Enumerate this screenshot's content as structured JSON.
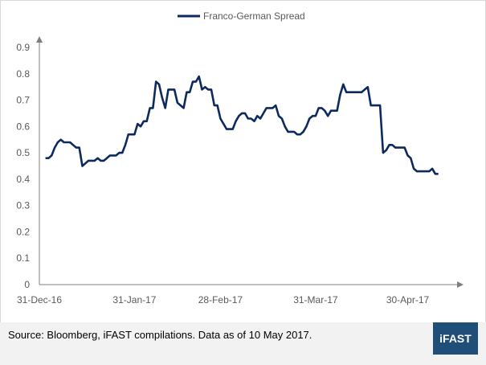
{
  "chart_data": {
    "type": "line",
    "title": "",
    "xlabel": "",
    "ylabel": "",
    "ylim": [
      0,
      0.9
    ],
    "yticks": [
      0,
      0.1,
      0.2,
      0.3,
      0.4,
      0.5,
      0.6,
      0.7,
      0.8,
      0.9
    ],
    "ytick_labels": [
      "0",
      "0.1",
      "0.2",
      "0.3",
      "0.4",
      "0.5",
      "0.6",
      "0.7",
      "0.8",
      "0.9"
    ],
    "xticks": [
      "2016-12-31",
      "2017-01-31",
      "2017-02-28",
      "2017-03-31",
      "2017-04-30"
    ],
    "xtick_labels": [
      "31-Dec-16",
      "31-Jan-17",
      "28-Feb-17",
      "31-Mar-17",
      "30-Apr-17"
    ],
    "xlim": [
      "2016-12-31",
      "2017-05-14"
    ],
    "grid": false,
    "legend_position": "top-center",
    "series": [
      {
        "name": "Franco-German Spread",
        "color": "#0d2a5e",
        "points": [
          [
            "2017-01-02",
            0.48
          ],
          [
            "2017-01-03",
            0.48
          ],
          [
            "2017-01-04",
            0.49
          ],
          [
            "2017-01-05",
            0.52
          ],
          [
            "2017-01-06",
            0.54
          ],
          [
            "2017-01-07",
            0.55
          ],
          [
            "2017-01-08",
            0.54
          ],
          [
            "2017-01-10",
            0.54
          ],
          [
            "2017-01-11",
            0.53
          ],
          [
            "2017-01-12",
            0.52
          ],
          [
            "2017-01-13",
            0.52
          ],
          [
            "2017-01-14",
            0.45
          ],
          [
            "2017-01-15",
            0.46
          ],
          [
            "2017-01-16",
            0.47
          ],
          [
            "2017-01-18",
            0.47
          ],
          [
            "2017-01-19",
            0.48
          ],
          [
            "2017-01-20",
            0.47
          ],
          [
            "2017-01-21",
            0.47
          ],
          [
            "2017-01-22",
            0.48
          ],
          [
            "2017-01-23",
            0.49
          ],
          [
            "2017-01-25",
            0.49
          ],
          [
            "2017-01-26",
            0.5
          ],
          [
            "2017-01-27",
            0.5
          ],
          [
            "2017-01-28",
            0.53
          ],
          [
            "2017-01-29",
            0.57
          ],
          [
            "2017-01-30",
            0.57
          ],
          [
            "2017-01-31",
            0.57
          ],
          [
            "2017-02-01",
            0.61
          ],
          [
            "2017-02-02",
            0.6
          ],
          [
            "2017-02-03",
            0.62
          ],
          [
            "2017-02-04",
            0.62
          ],
          [
            "2017-02-05",
            0.67
          ],
          [
            "2017-02-06",
            0.67
          ],
          [
            "2017-02-07",
            0.77
          ],
          [
            "2017-02-08",
            0.76
          ],
          [
            "2017-02-09",
            0.71
          ],
          [
            "2017-02-10",
            0.67
          ],
          [
            "2017-02-11",
            0.74
          ],
          [
            "2017-02-13",
            0.74
          ],
          [
            "2017-02-14",
            0.69
          ],
          [
            "2017-02-15",
            0.68
          ],
          [
            "2017-02-16",
            0.67
          ],
          [
            "2017-02-17",
            0.73
          ],
          [
            "2017-02-18",
            0.73
          ],
          [
            "2017-02-19",
            0.77
          ],
          [
            "2017-02-20",
            0.77
          ],
          [
            "2017-02-21",
            0.79
          ],
          [
            "2017-02-22",
            0.74
          ],
          [
            "2017-02-23",
            0.75
          ],
          [
            "2017-02-24",
            0.74
          ],
          [
            "2017-02-25",
            0.74
          ],
          [
            "2017-02-26",
            0.68
          ],
          [
            "2017-02-27",
            0.68
          ],
          [
            "2017-02-28",
            0.63
          ],
          [
            "2017-03-01",
            0.61
          ],
          [
            "2017-03-02",
            0.59
          ],
          [
            "2017-03-03",
            0.59
          ],
          [
            "2017-03-04",
            0.59
          ],
          [
            "2017-03-05",
            0.62
          ],
          [
            "2017-03-06",
            0.64
          ],
          [
            "2017-03-07",
            0.65
          ],
          [
            "2017-03-08",
            0.65
          ],
          [
            "2017-03-09",
            0.63
          ],
          [
            "2017-03-10",
            0.63
          ],
          [
            "2017-03-11",
            0.62
          ],
          [
            "2017-03-12",
            0.64
          ],
          [
            "2017-03-13",
            0.63
          ],
          [
            "2017-03-14",
            0.65
          ],
          [
            "2017-03-15",
            0.67
          ],
          [
            "2017-03-16",
            0.67
          ],
          [
            "2017-03-17",
            0.67
          ],
          [
            "2017-03-18",
            0.68
          ],
          [
            "2017-03-19",
            0.64
          ],
          [
            "2017-03-20",
            0.63
          ],
          [
            "2017-03-21",
            0.6
          ],
          [
            "2017-03-22",
            0.58
          ],
          [
            "2017-03-23",
            0.58
          ],
          [
            "2017-03-24",
            0.58
          ],
          [
            "2017-03-25",
            0.57
          ],
          [
            "2017-03-26",
            0.57
          ],
          [
            "2017-03-27",
            0.58
          ],
          [
            "2017-03-28",
            0.6
          ],
          [
            "2017-03-29",
            0.63
          ],
          [
            "2017-03-30",
            0.64
          ],
          [
            "2017-03-31",
            0.64
          ],
          [
            "2017-04-01",
            0.67
          ],
          [
            "2017-04-02",
            0.67
          ],
          [
            "2017-04-03",
            0.66
          ],
          [
            "2017-04-04",
            0.64
          ],
          [
            "2017-04-05",
            0.66
          ],
          [
            "2017-04-06",
            0.66
          ],
          [
            "2017-04-07",
            0.66
          ],
          [
            "2017-04-08",
            0.72
          ],
          [
            "2017-04-09",
            0.76
          ],
          [
            "2017-04-10",
            0.73
          ],
          [
            "2017-04-11",
            0.73
          ],
          [
            "2017-04-12",
            0.73
          ],
          [
            "2017-04-13",
            0.73
          ],
          [
            "2017-04-14",
            0.73
          ],
          [
            "2017-04-15",
            0.73
          ],
          [
            "2017-04-16",
            0.74
          ],
          [
            "2017-04-17",
            0.75
          ],
          [
            "2017-04-18",
            0.68
          ],
          [
            "2017-04-19",
            0.68
          ],
          [
            "2017-04-20",
            0.68
          ],
          [
            "2017-04-21",
            0.68
          ],
          [
            "2017-04-22",
            0.5
          ],
          [
            "2017-04-23",
            0.51
          ],
          [
            "2017-04-24",
            0.53
          ],
          [
            "2017-04-25",
            0.53
          ],
          [
            "2017-04-26",
            0.52
          ],
          [
            "2017-04-27",
            0.52
          ],
          [
            "2017-04-28",
            0.52
          ],
          [
            "2017-04-29",
            0.52
          ],
          [
            "2017-04-30",
            0.49
          ],
          [
            "2017-05-01",
            0.48
          ],
          [
            "2017-05-02",
            0.44
          ],
          [
            "2017-05-03",
            0.43
          ],
          [
            "2017-05-04",
            0.43
          ],
          [
            "2017-05-05",
            0.43
          ],
          [
            "2017-05-06",
            0.43
          ],
          [
            "2017-05-07",
            0.43
          ],
          [
            "2017-05-08",
            0.44
          ],
          [
            "2017-05-09",
            0.42
          ],
          [
            "2017-05-10",
            0.42
          ]
        ]
      }
    ]
  },
  "footer": {
    "source_text": "Source: Bloomberg, iFAST compilations. Data as of 10 May 2017.",
    "logo_text": "iFAST",
    "logo_color": "#1f4e79",
    "background_color": "#f2f2f2"
  }
}
